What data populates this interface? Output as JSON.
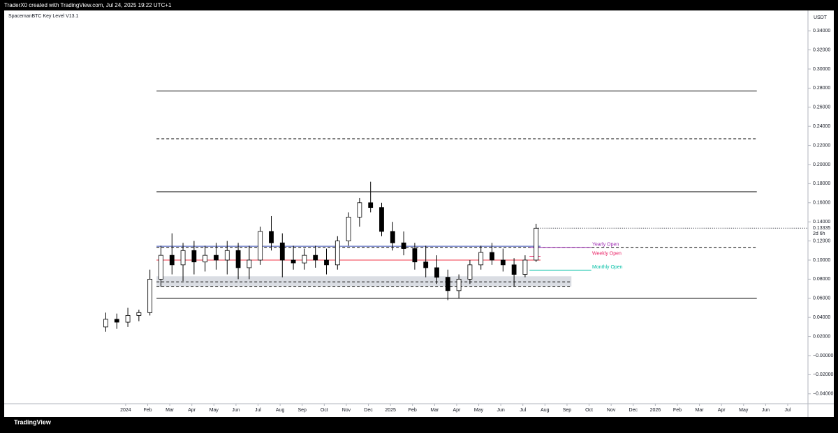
{
  "header": {
    "text": "TraderX0 created with TradingView.com, Jul 24, 2025 19:22 UTC+1"
  },
  "indicator": "SpacemanBTC Key Level V13.1",
  "footer": {
    "brand": "TradingView"
  },
  "chart_data": {
    "type": "candlestick",
    "currency": "USDT",
    "last_price": {
      "value": 0.13335,
      "label": "0.13335"
    },
    "countdown": "2d 6h",
    "color": "#000000",
    "x": [
      -0.9,
      -0.4,
      0.1,
      0.6,
      1.1,
      1.6,
      2.1,
      2.6,
      3.1,
      3.6,
      4.1,
      4.6,
      5.1,
      5.6,
      6.1,
      6.6,
      7.1,
      7.6,
      8.1,
      8.6,
      9.1,
      9.6,
      10.1,
      10.6,
      11.1,
      11.6,
      12.1,
      12.6,
      13.1,
      13.6,
      14.1,
      14.6,
      15.1,
      15.6,
      16.1,
      16.6,
      17.1,
      17.6,
      18.1,
      18.6
    ],
    "open": [
      0.03,
      0.038,
      0.035,
      0.042,
      0.045,
      0.08,
      0.105,
      0.095,
      0.11,
      0.098,
      0.105,
      0.1,
      0.11,
      0.092,
      0.1,
      0.13,
      0.118,
      0.1,
      0.097,
      0.105,
      0.1,
      0.095,
      0.12,
      0.145,
      0.16,
      0.155,
      0.13,
      0.118,
      0.112,
      0.098,
      0.092,
      0.082,
      0.068,
      0.08,
      0.095,
      0.108,
      0.1,
      0.095,
      0.085,
      0.1
    ],
    "high": [
      0.045,
      0.044,
      0.05,
      0.048,
      0.09,
      0.115,
      0.128,
      0.118,
      0.12,
      0.115,
      0.118,
      0.12,
      0.118,
      0.115,
      0.135,
      0.146,
      0.128,
      0.115,
      0.112,
      0.115,
      0.112,
      0.125,
      0.15,
      0.165,
      0.182,
      0.16,
      0.14,
      0.13,
      0.118,
      0.115,
      0.105,
      0.09,
      0.085,
      0.1,
      0.115,
      0.118,
      0.112,
      0.102,
      0.105,
      0.138
    ],
    "low": [
      0.025,
      0.028,
      0.03,
      0.036,
      0.042,
      0.072,
      0.085,
      0.078,
      0.085,
      0.088,
      0.09,
      0.085,
      0.08,
      0.08,
      0.095,
      0.11,
      0.082,
      0.09,
      0.09,
      0.092,
      0.085,
      0.09,
      0.115,
      0.135,
      0.15,
      0.125,
      0.11,
      0.105,
      0.09,
      0.082,
      0.075,
      0.058,
      0.06,
      0.075,
      0.09,
      0.095,
      0.088,
      0.072,
      0.082,
      0.098
    ],
    "close": [
      0.038,
      0.035,
      0.042,
      0.045,
      0.08,
      0.105,
      0.095,
      0.11,
      0.098,
      0.105,
      0.1,
      0.11,
      0.092,
      0.1,
      0.13,
      0.118,
      0.1,
      0.097,
      0.105,
      0.1,
      0.095,
      0.12,
      0.145,
      0.16,
      0.155,
      0.13,
      0.118,
      0.112,
      0.098,
      0.092,
      0.082,
      0.068,
      0.08,
      0.095,
      0.108,
      0.1,
      0.095,
      0.085,
      0.1,
      0.13335
    ],
    "levels": [
      {
        "value": 0.277,
        "style": "solid",
        "color": "#000000",
        "from": 1.4,
        "to": 28.6
      },
      {
        "value": 0.227,
        "style": "dashed",
        "color": "#000000",
        "from": 1.4,
        "to": 28.6
      },
      {
        "value": 0.1715,
        "style": "solid",
        "color": "#000000",
        "from": 1.4,
        "to": 28.6
      },
      {
        "value": 0.0599,
        "style": "solid",
        "color": "#000000",
        "from": 1.4,
        "to": 28.6
      },
      {
        "value": 0.1145,
        "style": "solid",
        "color": "#3f51b5",
        "from": 1.4,
        "to": 18.8
      },
      {
        "value": 0.1133,
        "style": "dashed",
        "color": "#000000",
        "from": 1.4,
        "to": 28.6
      },
      {
        "name": "Yearly Open",
        "value": 0.1133,
        "style": "solid",
        "color": "#9c27b0",
        "from": 18.3,
        "to": 21.1
      },
      {
        "value": 0.1,
        "style": "solid",
        "color": "#f23645",
        "from": 1.4,
        "to": 18.8
      },
      {
        "name": "Weekly Open",
        "value": 0.104,
        "style": "solid",
        "color": "#e91e63",
        "from": 18.3,
        "to": 18.8
      },
      {
        "name": "Monthly Open",
        "value": 0.0895,
        "style": "solid",
        "color": "#00bfa5",
        "from": 18.3,
        "to": 21.1
      },
      {
        "value": 0.0772,
        "style": "dashed",
        "color": "#000000",
        "from": 1.4,
        "to": 20.2
      },
      {
        "value": 0.0725,
        "style": "dashed",
        "color": "#000000",
        "from": 1.4,
        "to": 20.2
      }
    ],
    "zone": {
      "low": 0.0725,
      "high": 0.083,
      "from": 1.4,
      "to": 20.2,
      "color": "#d1d4dc"
    },
    "xlim": [
      -5.44,
      30.95
    ],
    "ylim": [
      -0.0511,
      0.3613
    ],
    "xticks": [
      {
        "value": 0,
        "label": "2024"
      },
      {
        "value": 1,
        "label": "Feb"
      },
      {
        "value": 2,
        "label": "Mar"
      },
      {
        "value": 3,
        "label": "Apr"
      },
      {
        "value": 4,
        "label": "May"
      },
      {
        "value": 5,
        "label": "Jun"
      },
      {
        "value": 6,
        "label": "Jul"
      },
      {
        "value": 7,
        "label": "Aug"
      },
      {
        "value": 8,
        "label": "Sep"
      },
      {
        "value": 9,
        "label": "Oct"
      },
      {
        "value": 10,
        "label": "Nov"
      },
      {
        "value": 11,
        "label": "Dec"
      },
      {
        "value": 12,
        "label": "2025"
      },
      {
        "value": 13,
        "label": "Feb"
      },
      {
        "value": 14,
        "label": "Mar"
      },
      {
        "value": 15,
        "label": "Apr"
      },
      {
        "value": 16,
        "label": "May"
      },
      {
        "value": 17,
        "label": "Jun"
      },
      {
        "value": 18,
        "label": "Jul"
      },
      {
        "value": 19,
        "label": "Aug"
      },
      {
        "value": 20,
        "label": "Sep"
      },
      {
        "value": 21,
        "label": "Oct"
      },
      {
        "value": 22,
        "label": "Nov"
      },
      {
        "value": 23,
        "label": "Dec"
      },
      {
        "value": 24,
        "label": "2026"
      },
      {
        "value": 25,
        "label": "Feb"
      },
      {
        "value": 26,
        "label": "Mar"
      },
      {
        "value": 27,
        "label": "Apr"
      },
      {
        "value": 28,
        "label": "May"
      },
      {
        "value": 29,
        "label": "Jun"
      },
      {
        "value": 30,
        "label": "Jul"
      }
    ],
    "yticks": [
      {
        "value": 0.34,
        "label": "0.34000"
      },
      {
        "value": 0.32,
        "label": "0.32000"
      },
      {
        "value": 0.3,
        "label": "0.30000"
      },
      {
        "value": 0.28,
        "label": "0.28000"
      },
      {
        "value": 0.26,
        "label": "0.26000"
      },
      {
        "value": 0.24,
        "label": "0.24000"
      },
      {
        "value": 0.22,
        "label": "0.22000"
      },
      {
        "value": 0.2,
        "label": "0.20000"
      },
      {
        "value": 0.18,
        "label": "0.18000"
      },
      {
        "value": 0.16,
        "label": "0.16000"
      },
      {
        "value": 0.14,
        "label": "0.14000"
      },
      {
        "value": 0.12,
        "label": "0.12000"
      },
      {
        "value": 0.1,
        "label": "0.10000"
      },
      {
        "value": 0.08,
        "label": "0.08000"
      },
      {
        "value": 0.06,
        "label": "0.06000"
      },
      {
        "value": 0.04,
        "label": "0.04000"
      },
      {
        "value": 0.02,
        "label": "0.02000"
      },
      {
        "value": 0,
        "label": "−0.00000"
      },
      {
        "value": -0.02,
        "label": "−0.02000"
      },
      {
        "value": -0.04,
        "label": "−0.04000"
      }
    ]
  }
}
